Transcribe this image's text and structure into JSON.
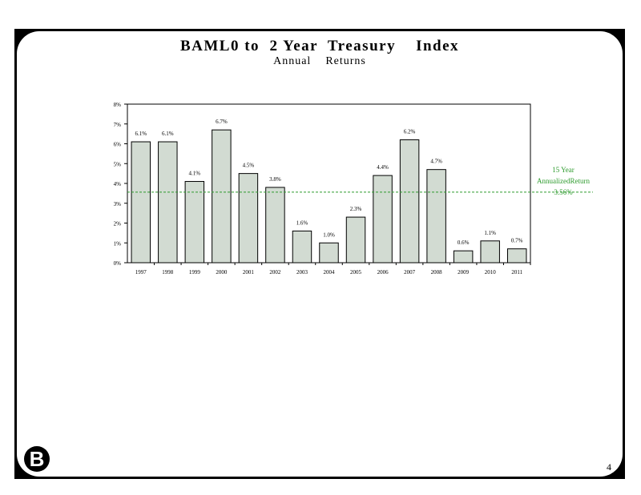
{
  "slide": {
    "title": "BAML0 to  2 Year  Treasury    Index",
    "subtitle": "Annual    Returns",
    "page_number": "4",
    "logo_text": "B"
  },
  "colors": {
    "bar_fill": "#d2dbd2",
    "bar_stroke": "#000000",
    "reference_line": "#2e9b2e",
    "annotation_text": "#2e9b2e"
  },
  "chart_data": {
    "type": "bar",
    "categories": [
      "1997",
      "1998",
      "1999",
      "2000",
      "2001",
      "2002",
      "2003",
      "2004",
      "2005",
      "2006",
      "2007",
      "2008",
      "2009",
      "2010",
      "2011"
    ],
    "values": [
      6.1,
      6.1,
      4.1,
      6.7,
      4.5,
      3.8,
      1.6,
      1.0,
      2.3,
      4.4,
      6.2,
      4.7,
      0.6,
      1.1,
      0.7
    ],
    "data_labels": [
      "6.1%",
      "6.1%",
      "4.1%",
      "6.7%",
      "4.5%",
      "3.8%",
      "1.6%",
      "1.0%",
      "2.3%",
      "4.4%",
      "6.2%",
      "4.7%",
      "0.6%",
      "1.1%",
      "0.7%"
    ],
    "title": "BAML0 to  2 Year  Treasury    Index",
    "subtitle": "Annual    Returns",
    "xlabel": "",
    "ylabel": "",
    "ylim": [
      0,
      8
    ],
    "yticks": [
      0,
      1,
      2,
      3,
      4,
      5,
      6,
      7,
      8
    ],
    "ytick_labels": [
      "0%",
      "1%",
      "2%",
      "3%",
      "4%",
      "5%",
      "6%",
      "7%",
      "8%"
    ],
    "grid": false,
    "reference_line": {
      "value": 3.56,
      "style": "dashed",
      "label_lines": [
        "15  Year",
        "AnnualizedReturn",
        "3.56%"
      ]
    }
  }
}
